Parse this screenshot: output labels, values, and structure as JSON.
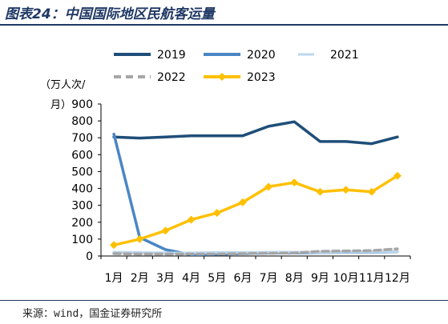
{
  "header": {
    "title": "图表24：中国国际地区民航客运量"
  },
  "footer": {
    "source": "来源：wind，国金证券研究所"
  },
  "chart_data": {
    "type": "line",
    "title": "",
    "ylabel": "（万人次/月）",
    "xlabel": "",
    "categories": [
      "1月",
      "2月",
      "3月",
      "4月",
      "5月",
      "6月",
      "7月",
      "8月",
      "9月",
      "10月",
      "11月",
      "12月"
    ],
    "ylim": [
      0,
      900
    ],
    "yticks": [
      0,
      100,
      200,
      300,
      400,
      500,
      600,
      700,
      800,
      900
    ],
    "grid": false,
    "legend_position": "top",
    "series": [
      {
        "name": "2019",
        "color": "#1f4e79",
        "style": "solid",
        "marker": "none",
        "values": [
          705,
          698,
          705,
          712,
          712,
          712,
          768,
          795,
          678,
          678,
          665,
          705
        ]
      },
      {
        "name": "2020",
        "color": "#4a86c5",
        "style": "solid",
        "marker": "none",
        "values": [
          722,
          110,
          38,
          8,
          10,
          14,
          18,
          18,
          20,
          22,
          22,
          24
        ]
      },
      {
        "name": "2021",
        "color": "#bdd7ee",
        "style": "solid",
        "marker": "none",
        "values": [
          22,
          20,
          18,
          18,
          20,
          20,
          22,
          22,
          22,
          24,
          24,
          24
        ]
      },
      {
        "name": "2022",
        "color": "#a6a6a6",
        "style": "dashed",
        "marker": "none",
        "values": [
          14,
          12,
          12,
          12,
          12,
          14,
          16,
          18,
          28,
          30,
          32,
          42
        ]
      },
      {
        "name": "2023",
        "color": "#ffc000",
        "style": "solid",
        "marker": "diamond",
        "values": [
          65,
          100,
          150,
          215,
          255,
          318,
          410,
          435,
          380,
          392,
          380,
          475
        ]
      }
    ]
  }
}
